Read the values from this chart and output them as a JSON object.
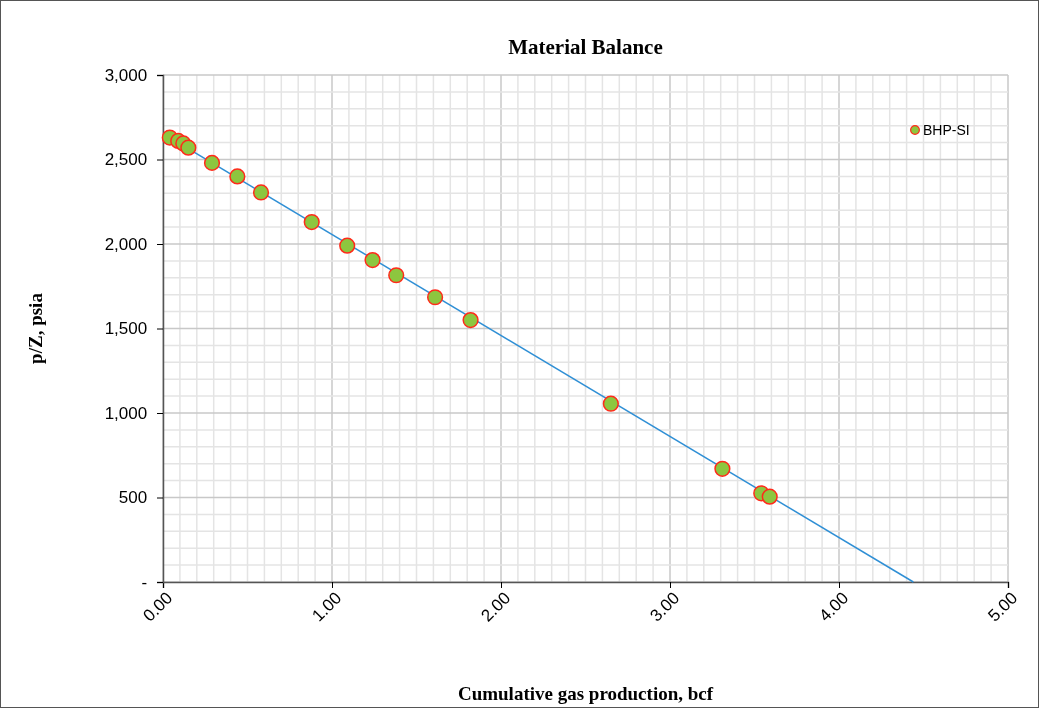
{
  "chart_data": {
    "type": "scatter",
    "title": "Material Balance",
    "xlabel": "Cumulative gas production, bcf",
    "ylabel": "p/Z, psia",
    "xlim": [
      0,
      5
    ],
    "xticks": [
      {
        "value": 0,
        "label": "0.00"
      },
      {
        "value": 1,
        "label": "1.00"
      },
      {
        "value": 2,
        "label": "2.00"
      },
      {
        "value": 3,
        "label": "3.00"
      },
      {
        "value": 4,
        "label": "4.00"
      },
      {
        "value": 5,
        "label": "5.00"
      }
    ],
    "ylim": [
      0,
      3000
    ],
    "yticks": [
      {
        "value": 0,
        "label": "-"
      },
      500,
      {
        "value": 1000,
        "label": "1,000"
      },
      {
        "value": 1500,
        "label": "1,500"
      },
      {
        "value": 2000,
        "label": "2,000"
      },
      {
        "value": 2500,
        "label": "2,500"
      },
      {
        "value": 3000,
        "label": "3,000"
      }
    ],
    "grid": true,
    "legend": "top right",
    "marker": "circle",
    "series": [
      {
        "name": "BHP-SI",
        "color": "#8dc63f",
        "x": [
          0.04,
          0.09,
          0.12,
          0.15,
          0.29,
          0.44,
          0.58,
          0.88,
          1.09,
          1.24,
          1.38,
          1.61,
          1.82,
          2.65,
          3.31,
          3.54,
          3.59
        ],
        "values": [
          2630,
          2610,
          2595,
          2570,
          2480,
          2400,
          2305,
          2130,
          1990,
          1905,
          1815,
          1685,
          1550,
          1055,
          670,
          525,
          505
        ]
      },
      {
        "type": "line",
        "color": "#2f8fd5",
        "line_style": "solid",
        "marker": "none",
        "x": [
          0.04,
          4.44
        ],
        "values": [
          2630,
          0
        ]
      }
    ]
  }
}
